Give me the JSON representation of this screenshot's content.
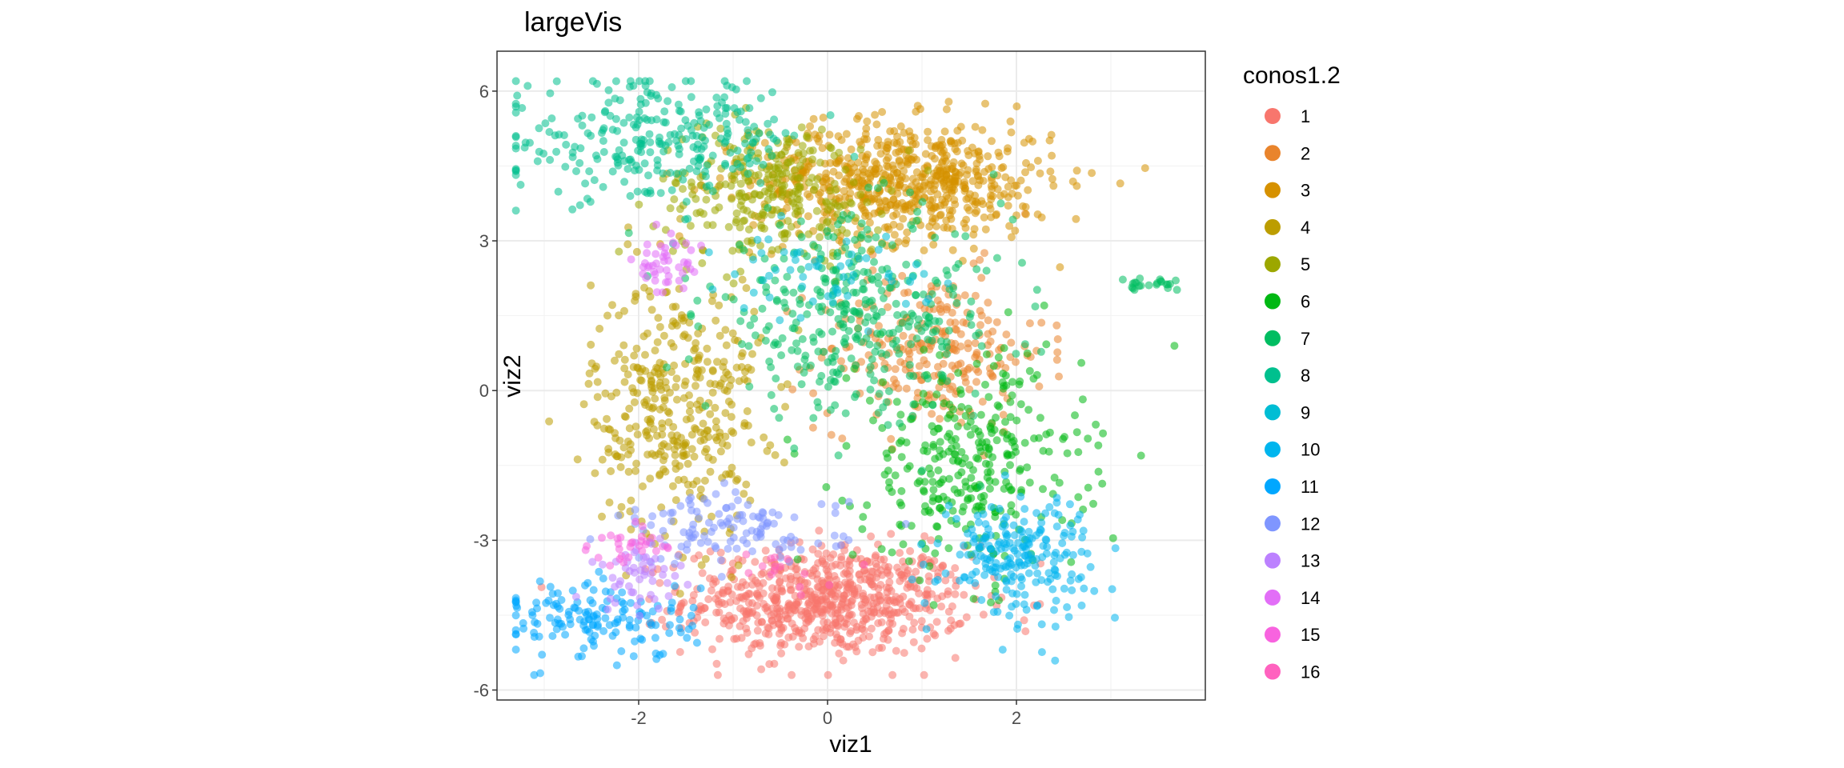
{
  "chart_data": {
    "type": "scatter",
    "title": "largeVis",
    "xlabel": "viz1",
    "ylabel": "viz2",
    "xlim": [
      -3.5,
      4.0
    ],
    "ylim": [
      -6.2,
      6.8
    ],
    "x_ticks": [
      -2,
      0,
      2
    ],
    "y_ticks": [
      -6,
      -3,
      0,
      3,
      6
    ],
    "x_tick_labels": [
      "-2",
      "0",
      "2"
    ],
    "y_tick_labels": [
      "-6",
      "-3",
      "0",
      "3",
      "6"
    ],
    "grid": true,
    "legend": {
      "title": "conos1.2",
      "placement": "right",
      "entries": [
        {
          "label": "1",
          "color": "#F8766D"
        },
        {
          "label": "2",
          "color": "#E9842C"
        },
        {
          "label": "3",
          "color": "#D69100"
        },
        {
          "label": "4",
          "color": "#BC9D00"
        },
        {
          "label": "5",
          "color": "#9CA700"
        },
        {
          "label": "6",
          "color": "#00B813"
        },
        {
          "label": "7",
          "color": "#00BD61"
        },
        {
          "label": "8",
          "color": "#00C08E"
        },
        {
          "label": "9",
          "color": "#00BDD4"
        },
        {
          "label": "10",
          "color": "#00B5EE"
        },
        {
          "label": "11",
          "color": "#00A7FF"
        },
        {
          "label": "12",
          "color": "#7F96FF"
        },
        {
          "label": "13",
          "color": "#BC81FF"
        },
        {
          "label": "14",
          "color": "#E26EF7"
        },
        {
          "label": "15",
          "color": "#F863DF"
        },
        {
          "label": "16",
          "color": "#FF62BF"
        }
      ]
    },
    "clusters": [
      {
        "cluster": "1",
        "cx": 0.0,
        "cy": -4.2,
        "sx": 0.75,
        "sy": 0.55,
        "n": 700
      },
      {
        "cluster": "2",
        "cx": 1.1,
        "cy": 0.8,
        "sx": 0.6,
        "sy": 0.8,
        "n": 260
      },
      {
        "cluster": "3",
        "cx": 0.8,
        "cy": 4.2,
        "sx": 0.8,
        "sy": 0.6,
        "n": 650
      },
      {
        "cluster": "4",
        "cx": -1.6,
        "cy": -0.3,
        "sx": 0.45,
        "sy": 1.3,
        "n": 380
      },
      {
        "cluster": "5",
        "cx": -0.6,
        "cy": 4.0,
        "sx": 0.6,
        "sy": 0.7,
        "n": 280
      },
      {
        "cluster": "6",
        "cx": 1.5,
        "cy": -1.5,
        "sx": 0.6,
        "sy": 1.1,
        "n": 330
      },
      {
        "cluster": "7",
        "cx": 0.3,
        "cy": 1.5,
        "sx": 0.8,
        "sy": 1.0,
        "n": 350
      },
      {
        "cluster": "8",
        "cx": -1.8,
        "cy": 5.0,
        "sx": 0.8,
        "sy": 0.6,
        "n": 280
      },
      {
        "cluster": "9",
        "cx": 0.0,
        "cy": 2.3,
        "sx": 0.55,
        "sy": 0.4,
        "n": 60
      },
      {
        "cluster": "10",
        "cx": 2.0,
        "cy": -3.3,
        "sx": 0.4,
        "sy": 0.6,
        "n": 220
      },
      {
        "cluster": "11",
        "cx": -2.4,
        "cy": -4.6,
        "sx": 0.5,
        "sy": 0.4,
        "n": 150
      },
      {
        "cluster": "12",
        "cx": -1.0,
        "cy": -2.8,
        "sx": 0.6,
        "sy": 0.35,
        "n": 120
      },
      {
        "cluster": "13",
        "cx": -2.0,
        "cy": -3.7,
        "sx": 0.25,
        "sy": 0.35,
        "n": 50
      },
      {
        "cluster": "14",
        "cx": -1.7,
        "cy": 2.5,
        "sx": 0.18,
        "sy": 0.3,
        "n": 45
      },
      {
        "cluster": "15",
        "cx": -2.1,
        "cy": -3.1,
        "sx": 0.2,
        "sy": 0.2,
        "n": 30
      },
      {
        "cluster": "16",
        "cx": -0.5,
        "cy": -3.6,
        "sx": 0.3,
        "sy": 0.2,
        "n": 15
      },
      {
        "cluster": "7",
        "cx": 3.4,
        "cy": 2.1,
        "sx": 0.15,
        "sy": 0.06,
        "n": 22
      }
    ]
  }
}
